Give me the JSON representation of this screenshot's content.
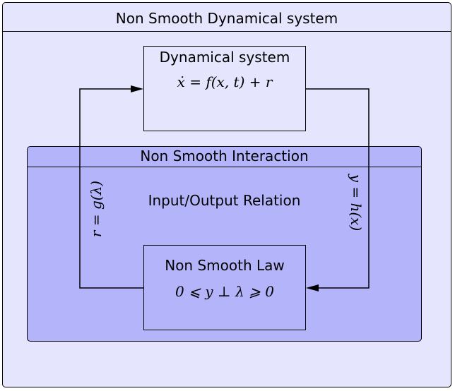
{
  "system": {
    "title": "Non Smooth Dynamical system"
  },
  "dynamical_box": {
    "title": "Dynamical system",
    "formula": "ẋ = f(x, t) + r"
  },
  "interaction": {
    "title": "Non Smooth Interaction",
    "relation_label": "Input/Output Relation",
    "input_label": "r = g(λ)",
    "output_label": "y = h(x)"
  },
  "law_box": {
    "title": "Non Smooth Law",
    "formula": "0 ⩽ y ⊥ λ ⩾ 0"
  },
  "colors": {
    "outer_fill": "#e5e5fd",
    "interaction_fill": "#b4b4fb"
  }
}
